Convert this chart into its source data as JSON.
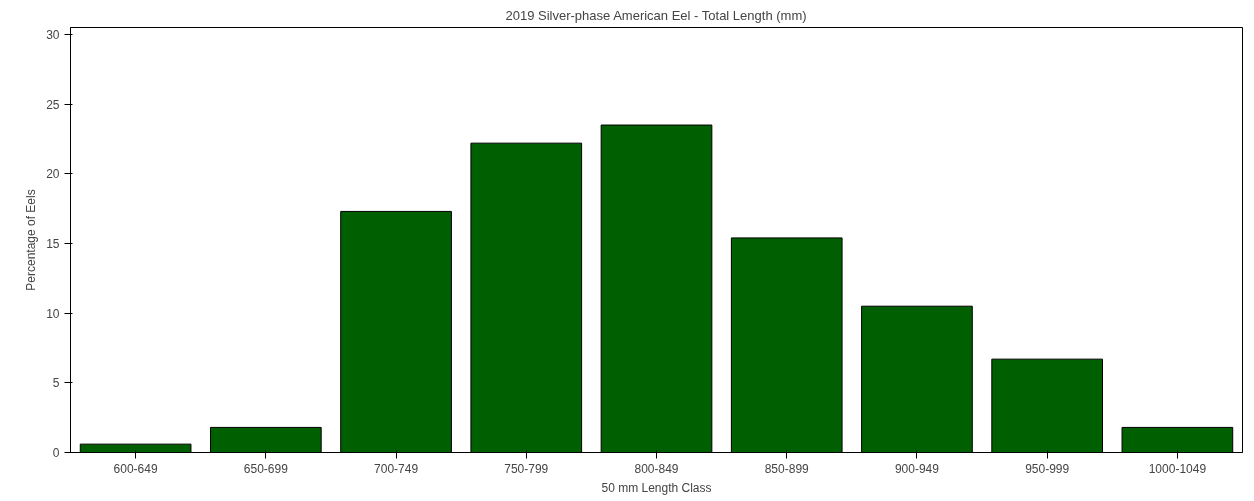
{
  "chart_data": {
    "type": "bar",
    "title": "2019 Silver-phase American Eel - Total Length (mm)",
    "xlabel": "50 mm Length Class",
    "ylabel": "Percentage of Eels",
    "categories": [
      "600-649",
      "650-699",
      "700-749",
      "750-799",
      "800-849",
      "850-899",
      "900-949",
      "950-999",
      "1000-1049"
    ],
    "values": [
      0.6,
      1.8,
      17.3,
      22.2,
      23.5,
      15.4,
      10.5,
      6.7,
      1.8
    ],
    "color": "#005f00",
    "ylim": [
      0,
      30.5
    ],
    "yticks": [
      0,
      5,
      10,
      15,
      20,
      25,
      30
    ],
    "grid": false
  }
}
